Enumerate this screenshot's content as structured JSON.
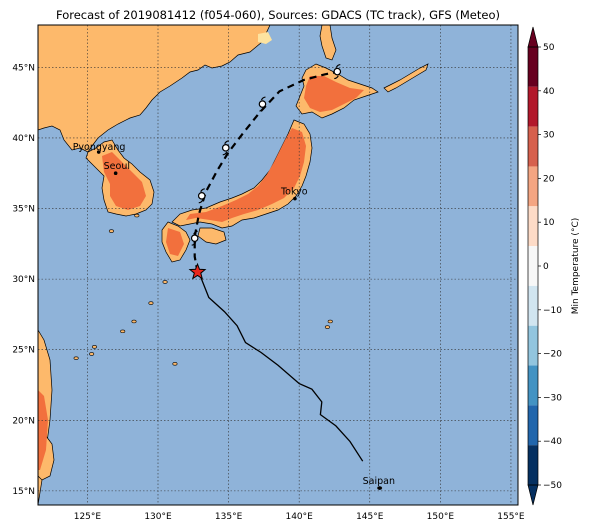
{
  "title": "Forecast of 2019081412 (f054-060), Sources: GDACS (TC track), GFS (Meteo)",
  "colors": {
    "ocean": "#8fb3d9",
    "land_warm": "#fdb96b",
    "land_hot": "#f2703d",
    "land_pale": "#fde3a0",
    "track": "#000000",
    "star": "#e8261c"
  },
  "axes": {
    "lon_ticks": [
      "125°E",
      "130°E",
      "135°E",
      "140°E",
      "145°E",
      "150°E",
      "155°E"
    ],
    "lat_ticks": [
      "45°N",
      "40°N",
      "35°N",
      "30°N",
      "25°N",
      "20°N",
      "15°N"
    ]
  },
  "cities": [
    {
      "name": "Pyongyang",
      "lon": 125.8,
      "lat": 39.0
    },
    {
      "name": "Seoul",
      "lon": 127.0,
      "lat": 37.5
    },
    {
      "name": "Tokyo",
      "lon": 139.7,
      "lat": 35.7
    },
    {
      "name": "Saipan",
      "lon": 145.7,
      "lat": 15.2
    }
  ],
  "colorbar": {
    "label": "Min Temperature (°C)",
    "ticks": [
      "50",
      "40",
      "30",
      "20",
      "10",
      "0",
      "−10",
      "−20",
      "−30",
      "−40",
      "−50"
    ],
    "colors": [
      "#67001f",
      "#b2182b",
      "#d6604d",
      "#f4a582",
      "#fddbc7",
      "#f7f7f7",
      "#d1e5f0",
      "#92c5de",
      "#4393c3",
      "#2166ac",
      "#053061"
    ]
  },
  "track": {
    "observed": [
      [
        144.5,
        17.1
      ],
      [
        143.6,
        18.5
      ],
      [
        142.6,
        19.6
      ],
      [
        141.5,
        20.4
      ],
      [
        141.6,
        21.3
      ],
      [
        140.9,
        22.2
      ],
      [
        140.0,
        22.6
      ],
      [
        138.5,
        23.9
      ],
      [
        137.3,
        24.8
      ],
      [
        136.2,
        25.5
      ],
      [
        135.6,
        26.7
      ],
      [
        134.7,
        27.7
      ],
      [
        133.6,
        28.7
      ],
      [
        133.0,
        30.2
      ],
      [
        132.8,
        30.5
      ]
    ],
    "forecast": [
      [
        132.8,
        30.5
      ],
      [
        132.6,
        31.6
      ],
      [
        132.6,
        33.0
      ],
      [
        132.9,
        34.6
      ],
      [
        133.4,
        36.2
      ],
      [
        134.2,
        37.7
      ],
      [
        135.0,
        39.0
      ],
      [
        136.0,
        40.3
      ],
      [
        137.2,
        41.8
      ],
      [
        138.6,
        43.3
      ],
      [
        140.3,
        44.1
      ],
      [
        141.8,
        44.5
      ],
      [
        142.8,
        44.7
      ]
    ],
    "forecast_points": [
      [
        132.6,
        32.9
      ],
      [
        133.1,
        35.9
      ],
      [
        134.8,
        39.3
      ],
      [
        137.4,
        42.4
      ],
      [
        142.7,
        44.7
      ]
    ],
    "current": [
      132.8,
      30.5
    ]
  }
}
